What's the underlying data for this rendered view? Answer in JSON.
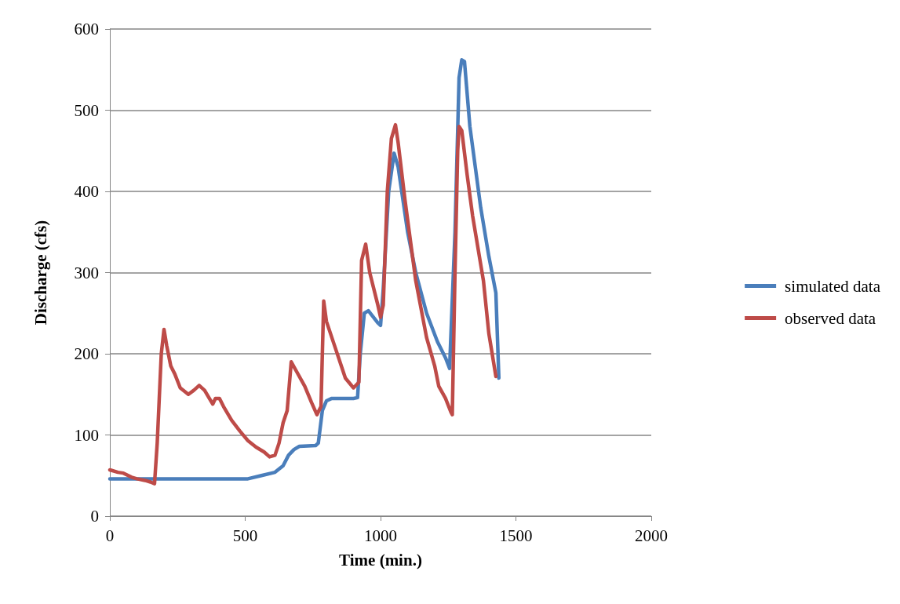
{
  "chart_data": {
    "type": "line",
    "xlabel": "Time (min.)",
    "ylabel": "Discharge (cfs)",
    "xlim": [
      0,
      2000
    ],
    "xticks": [
      0,
      500,
      1000,
      1500,
      2000
    ],
    "ylim": [
      0,
      600
    ],
    "yticks": [
      0,
      100,
      200,
      300,
      400,
      500,
      600
    ],
    "grid": "y",
    "legend": "right",
    "marker": "none",
    "line_style": "solid",
    "series": [
      {
        "name": "simulated data",
        "color": "#4a7ebb",
        "x": [
          0,
          100,
          200,
          300,
          400,
          510,
          560,
          610,
          640,
          660,
          680,
          700,
          760,
          770,
          785,
          800,
          820,
          900,
          915,
          925,
          940,
          955,
          990,
          1000,
          1010,
          1030,
          1050,
          1065,
          1100,
          1130,
          1170,
          1210,
          1240,
          1255,
          1275,
          1290,
          1300,
          1310,
          1330,
          1370,
          1400,
          1426,
          1437
        ],
        "values": [
          46,
          46,
          46,
          46,
          46,
          46,
          50,
          54,
          62,
          75,
          82,
          86,
          87,
          90,
          130,
          142,
          145,
          145,
          146,
          200,
          250,
          253,
          238,
          235,
          280,
          400,
          447,
          430,
          350,
          300,
          250,
          215,
          195,
          182,
          350,
          540,
          562,
          560,
          480,
          380,
          320,
          275,
          170
        ]
      },
      {
        "name": "observed data",
        "color": "#be4b48",
        "x": [
          0,
          30,
          50,
          80,
          100,
          130,
          150,
          165,
          175,
          190,
          200,
          210,
          225,
          240,
          260,
          290,
          310,
          330,
          350,
          380,
          390,
          405,
          420,
          450,
          480,
          510,
          540,
          570,
          590,
          610,
          625,
          640,
          655,
          670,
          690,
          720,
          745,
          765,
          780,
          790,
          800,
          830,
          870,
          900,
          920,
          930,
          945,
          960,
          990,
          1000,
          1010,
          1025,
          1040,
          1055,
          1065,
          1090,
          1130,
          1170,
          1200,
          1215,
          1240,
          1260,
          1265,
          1275,
          1285,
          1290,
          1300,
          1320,
          1340,
          1380,
          1400,
          1426
        ],
        "values": [
          57,
          54,
          53,
          48,
          46,
          44,
          42,
          40,
          90,
          200,
          230,
          210,
          185,
          175,
          158,
          150,
          155,
          161,
          155,
          138,
          145,
          145,
          135,
          118,
          105,
          93,
          85,
          79,
          73,
          75,
          90,
          115,
          130,
          190,
          178,
          160,
          140,
          125,
          135,
          265,
          240,
          210,
          170,
          158,
          165,
          315,
          335,
          300,
          260,
          245,
          260,
          400,
          465,
          482,
          460,
          390,
          290,
          220,
          185,
          160,
          145,
          128,
          125,
          300,
          450,
          480,
          475,
          420,
          370,
          290,
          225,
          172
        ]
      }
    ]
  }
}
